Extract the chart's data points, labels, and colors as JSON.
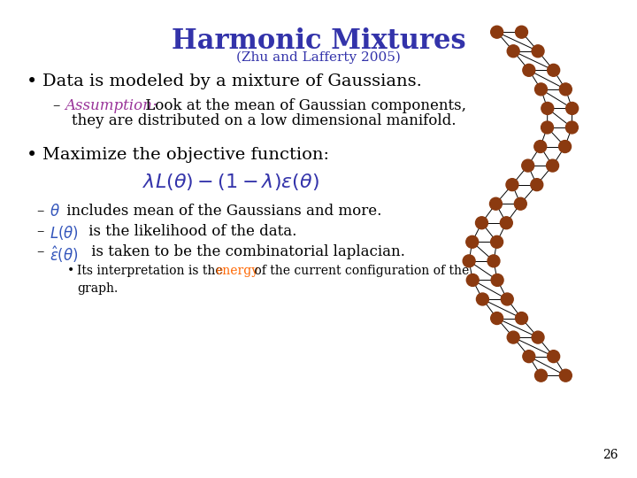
{
  "title": "Harmonic Mixtures",
  "subtitle": "(Zhu and Lafferty 2005)",
  "title_color": "#3333AA",
  "subtitle_color": "#3333AA",
  "background_color": "#FFFFFF",
  "slide_number": "26",
  "bullet1": "Data is modeled by a mixture of Gaussians.",
  "bullet1_color": "#000000",
  "assumption_label": "Assumption:",
  "assumption_label_color": "#993399",
  "assumption_text1": " Look at the mean of Gaussian components,",
  "assumption_text2": "they are distributed on a low dimensional manifold.",
  "assumption_text_color": "#000000",
  "bullet2": "Maximize the objective function:",
  "bullet2_color": "#000000",
  "formula_color": "#3333AA",
  "energy_color": "#FF6600",
  "italic_color": "#3355BB",
  "node_color": "#8B3A10",
  "edge_color": "#000000"
}
